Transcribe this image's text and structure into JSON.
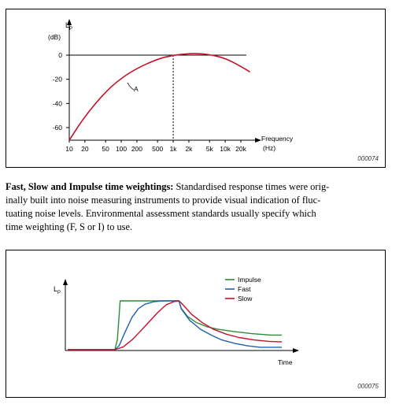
{
  "figure1": {
    "ylabel_main": "L",
    "ylabel_sub": "P",
    "ylabel_unit": "(dB)",
    "xlabel": "Frequency",
    "xlabel_unit": "(Hz)",
    "curve_label": "A",
    "figure_id": "000074",
    "chart_data": {
      "type": "line",
      "x_scale": "log",
      "x_ticks": [
        "10",
        "20",
        "50",
        "100",
        "200",
        "500",
        "1k",
        "2k",
        "5k",
        "10k",
        "20k"
      ],
      "x_tick_values": [
        10,
        20,
        50,
        100,
        200,
        500,
        1000,
        2000,
        5000,
        10000,
        20000
      ],
      "y_ticks": [
        "0",
        "-20",
        "-40",
        "-60"
      ],
      "y_tick_values": [
        0,
        -20,
        -40,
        -60
      ],
      "ylim": [
        -70,
        10
      ],
      "reference_line_y": 0,
      "reference_line_x": 1000,
      "series": [
        {
          "name": "A",
          "x": [
            10,
            20,
            50,
            100,
            200,
            500,
            1000,
            2000,
            3000,
            5000,
            10000,
            20000,
            30000
          ],
          "y": [
            -70.4,
            -50.5,
            -30.2,
            -19.1,
            -10.9,
            -3.2,
            0,
            1.2,
            1.3,
            0.5,
            -2.5,
            -9.3,
            -14
          ],
          "color": "#c4102a"
        }
      ]
    }
  },
  "body_text": {
    "lead": "Fast, Slow and Impulse time weightings:",
    "line1_rest": " Standardised response times were orig-",
    "line2": "inally built into noise measuring instruments to provide visual indication of fluc-",
    "line3": "tuating noise levels. Environmental assessment standards usually specify which",
    "line4": "time weighting (F, S or I) to use."
  },
  "figure2": {
    "ylabel_main": "L",
    "ylabel_sub": "P",
    "xlabel": "Time",
    "figure_id": "000075",
    "chart_data": {
      "type": "line",
      "xlim": [
        0,
        1
      ],
      "ylim": [
        0,
        1
      ],
      "legend": "top-right",
      "series": [
        {
          "name": "Impulse",
          "color": "#2f8a35",
          "x": [
            0,
            0.22,
            0.232,
            0.245,
            0.52,
            0.53,
            0.56,
            0.6,
            0.65,
            0.7,
            0.78,
            0.86,
            0.95,
            1.0
          ],
          "y": [
            0,
            0,
            0.2,
            1,
            1,
            0.85,
            0.68,
            0.56,
            0.47,
            0.42,
            0.37,
            0.33,
            0.3,
            0.3
          ]
        },
        {
          "name": "Fast",
          "color": "#1f5fb0",
          "x": [
            0,
            0.22,
            0.24,
            0.27,
            0.3,
            0.33,
            0.36,
            0.4,
            0.44,
            0.52,
            0.53,
            0.57,
            0.62,
            0.67,
            0.72,
            0.78,
            0.84,
            0.9,
            1.0
          ],
          "y": [
            0,
            0,
            0.08,
            0.38,
            0.66,
            0.84,
            0.93,
            0.98,
            1,
            1,
            0.84,
            0.6,
            0.42,
            0.3,
            0.2,
            0.13,
            0.08,
            0.05,
            0.05
          ]
        },
        {
          "name": "Slow",
          "color": "#c4102a",
          "x": [
            0,
            0.22,
            0.26,
            0.3,
            0.34,
            0.38,
            0.42,
            0.46,
            0.5,
            0.52,
            0.53,
            0.58,
            0.63,
            0.68,
            0.74,
            0.8,
            0.87,
            0.94,
            1.0
          ],
          "y": [
            0,
            0,
            0.06,
            0.2,
            0.38,
            0.57,
            0.76,
            0.92,
            0.99,
            1,
            0.96,
            0.72,
            0.55,
            0.42,
            0.32,
            0.25,
            0.2,
            0.17,
            0.16
          ]
        }
      ]
    }
  }
}
